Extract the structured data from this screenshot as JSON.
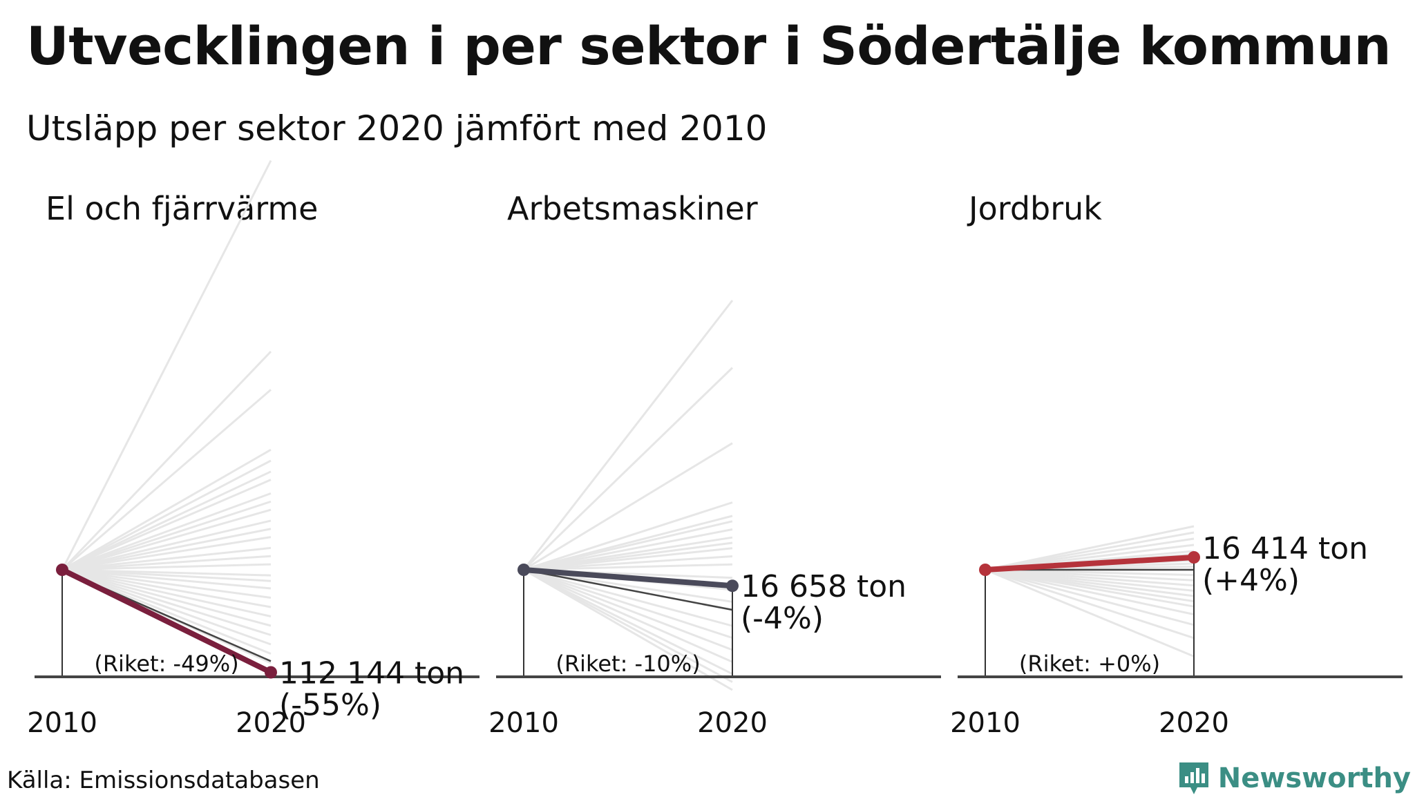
{
  "header": {
    "title": "Utvecklingen i per sektor i Södertälje kommun",
    "subtitle": "Utsläpp per sektor 2020 jämfört med 2010"
  },
  "footer": {
    "source": "Källa: Emissionsdatabasen",
    "brand": "Newsworthy",
    "brand_icon": "bar-chart-logo-icon",
    "brand_color": "#3b8e84"
  },
  "chart_data": [
    {
      "type": "line",
      "title": "El och fjärrvärme",
      "x": [
        "2010",
        "2020"
      ],
      "highlight": {
        "label": "112 144 ton",
        "change": "(-55%)",
        "change_pct": -55,
        "color": "#7a1f3d"
      },
      "national": {
        "label": "(Riket: -49%)",
        "change_pct": -49
      },
      "comparison_change_pct": [
        150,
        80,
        66,
        44,
        40,
        36,
        33,
        28,
        25,
        22,
        18,
        15,
        12,
        8,
        5,
        2,
        -3,
        -6,
        -10,
        -15,
        -20,
        -25,
        -30,
        -35,
        -40,
        -45,
        -50
      ]
    },
    {
      "type": "line",
      "title": "Arbetsmaskiner",
      "x": [
        "2010",
        "2020"
      ],
      "highlight": {
        "label": "16 658 ton",
        "change": "(-4%)",
        "change_pct": -4,
        "color": "#4a4a5a"
      },
      "national": {
        "label": "(Riket: -10%)",
        "change_pct": -10
      },
      "comparison_change_pct": [
        100,
        75,
        47,
        25,
        20,
        18,
        15,
        12,
        10,
        8,
        5,
        2,
        -2,
        -5,
        -8,
        -10,
        -14,
        -17,
        -20,
        -23,
        -26,
        -28,
        -30
      ]
    },
    {
      "type": "line",
      "title": "Jordbruk",
      "x": [
        "2010",
        "2020"
      ],
      "highlight": {
        "label": "16 414 ton",
        "change": "(+4%)",
        "change_pct": 4,
        "color": "#b5333b"
      },
      "national": {
        "label": "(Riket: +0%)",
        "change_pct": 0
      },
      "comparison_change_pct": [
        14,
        12,
        10,
        8,
        6,
        5,
        4,
        3,
        2,
        1,
        0,
        -2,
        -4,
        -6,
        -8,
        -10,
        -12,
        -14,
        -17,
        -21,
        -26,
        -33
      ]
    }
  ]
}
